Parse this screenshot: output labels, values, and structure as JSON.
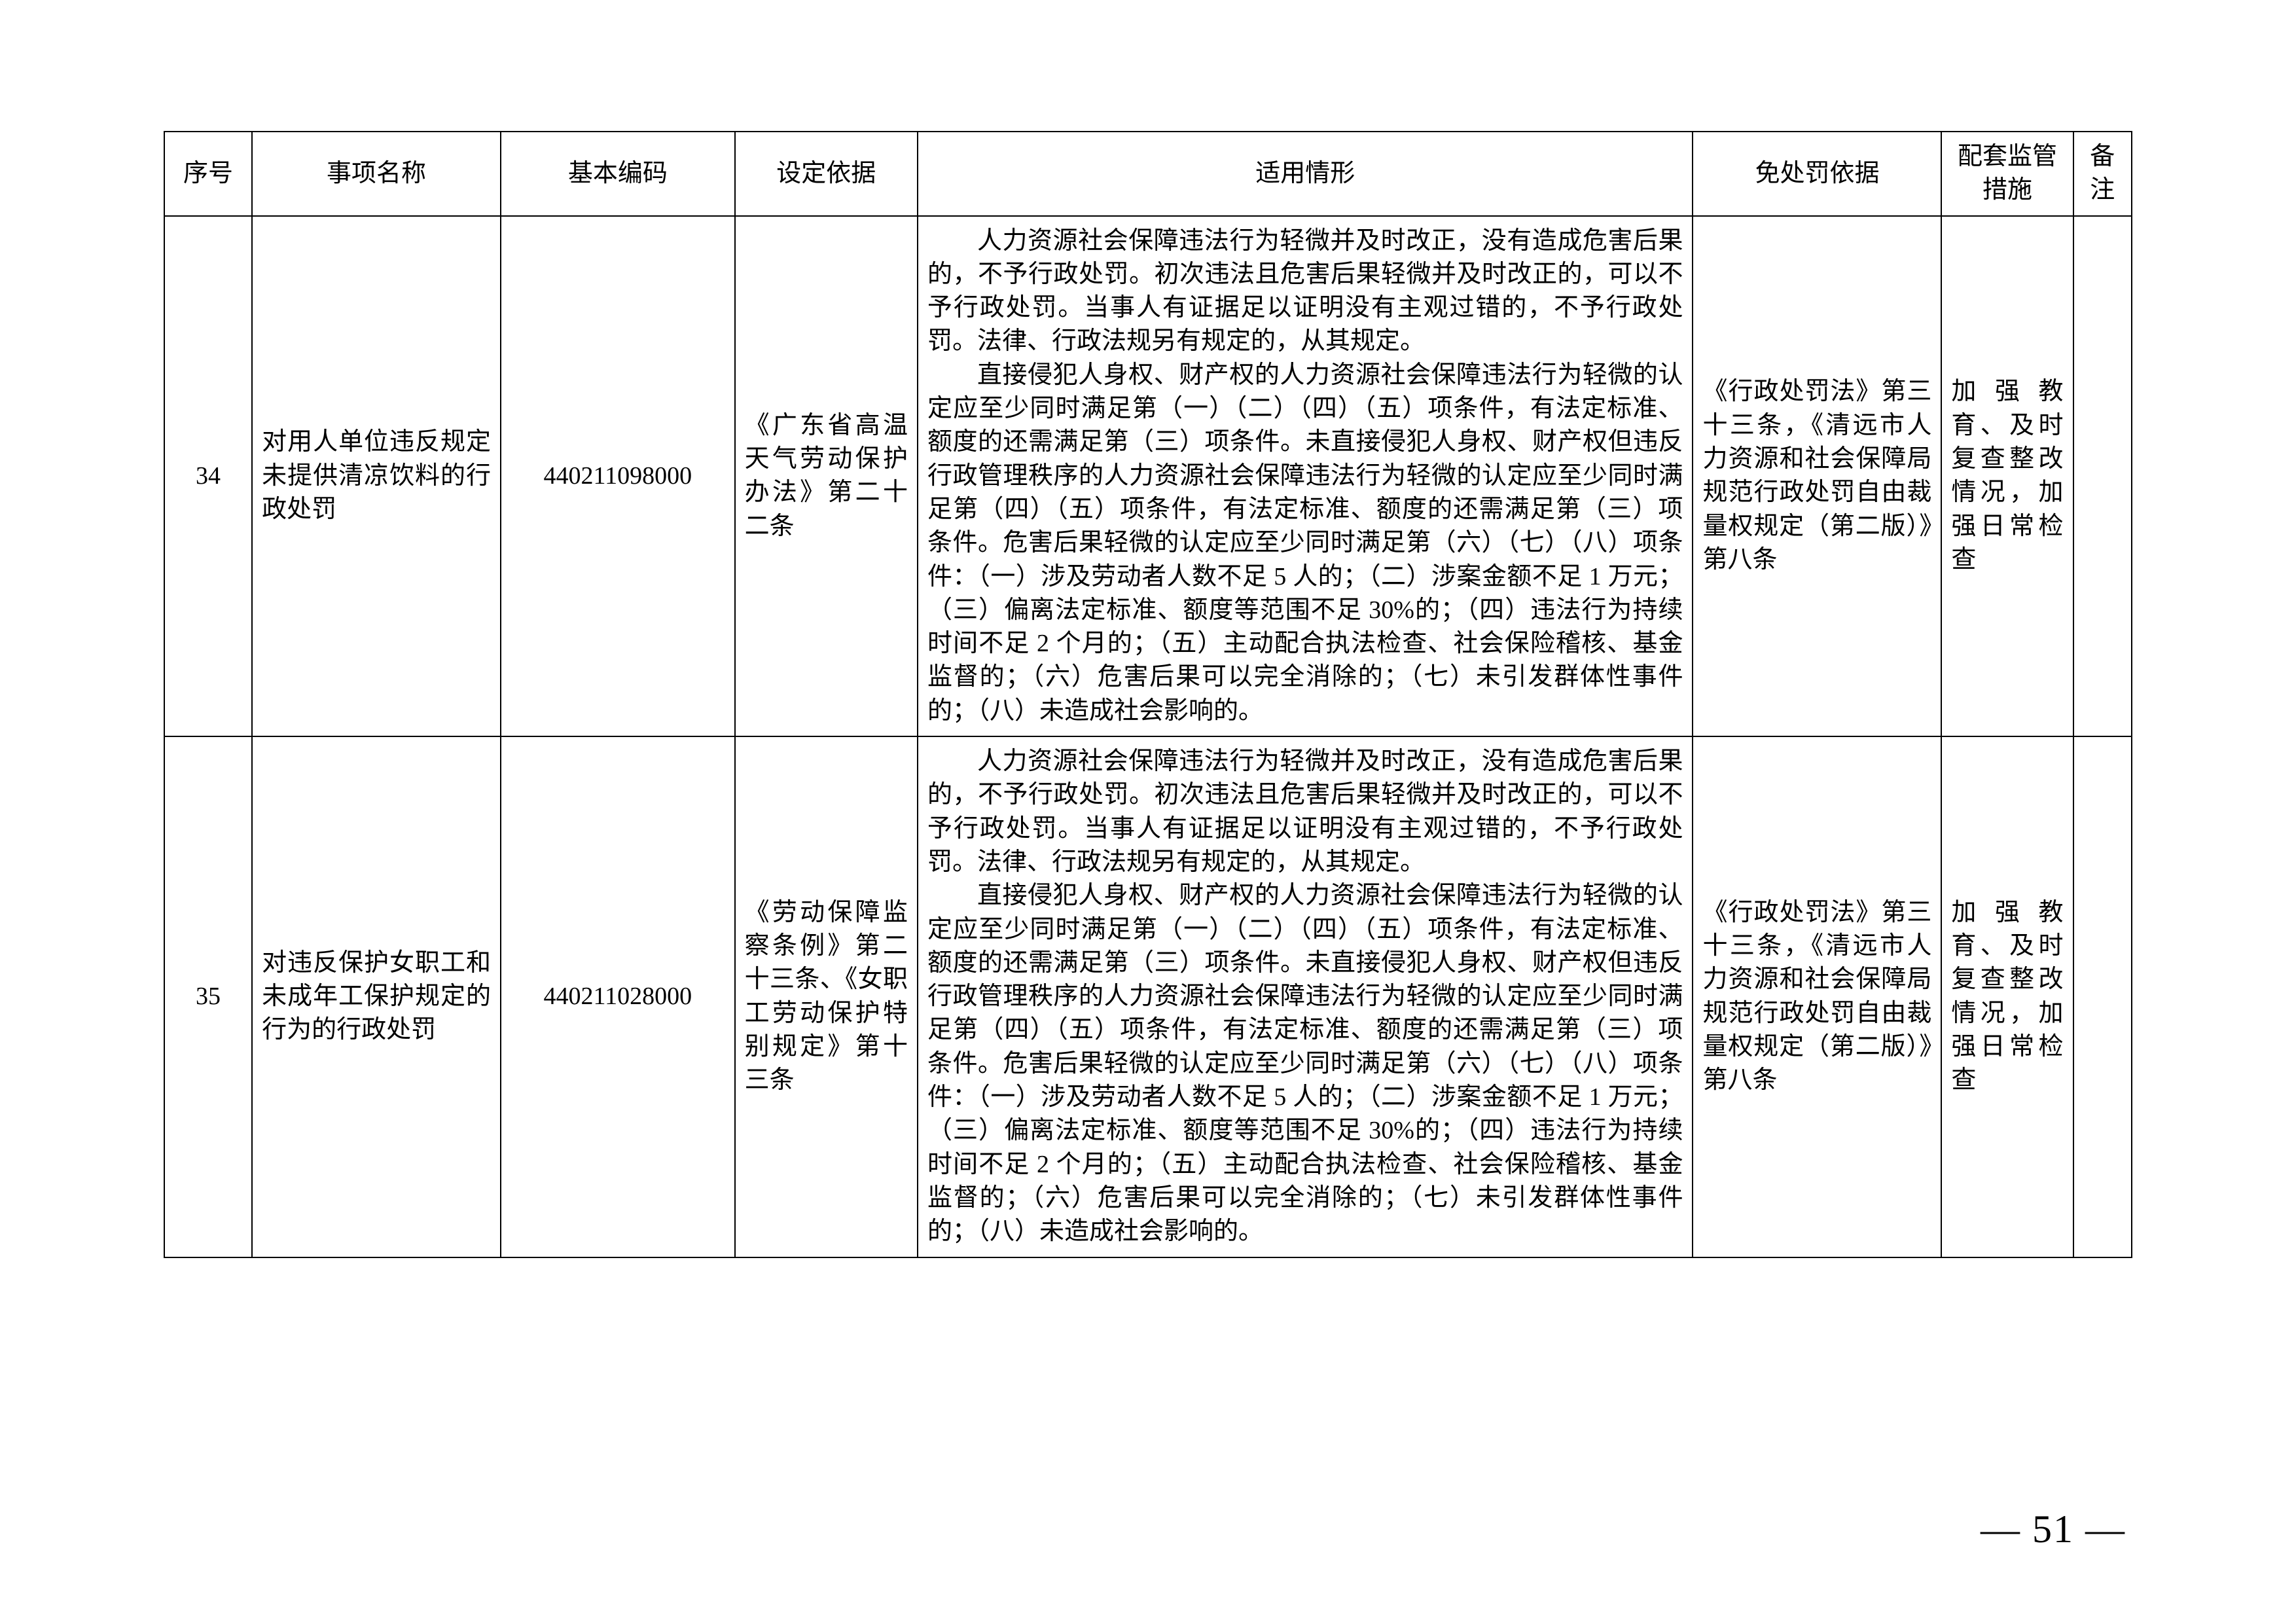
{
  "header": {
    "seq": "序号",
    "name": "事项名称",
    "code": "基本编码",
    "basis": "设定依据",
    "situation": "适用情形",
    "exemption": "免处罚依据",
    "measure": "配套监管措施",
    "note": "备注"
  },
  "rows": [
    {
      "seq": "34",
      "name": "对用人单位违反规定未提供清凉饮料的行政处罚",
      "code": "440211098000",
      "basis": "《广东省高温天气劳动保护办法》第二十二条",
      "situation_p1": "人力资源社会保障违法行为轻微并及时改正，没有造成危害后果的，不予行政处罚。初次违法且危害后果轻微并及时改正的，可以不予行政处罚。当事人有证据足以证明没有主观过错的，不予行政处罚。法律、行政法规另有规定的，从其规定。",
      "situation_p2": "直接侵犯人身权、财产权的人力资源社会保障违法行为轻微的认定应至少同时满足第（一）（二）（四）（五）项条件，有法定标准、额度的还需满足第（三）项条件。未直接侵犯人身权、财产权但违反行政管理秩序的人力资源社会保障违法行为轻微的认定应至少同时满足第（四）（五）项条件，有法定标准、额度的还需满足第（三）项条件。危害后果轻微的认定应至少同时满足第（六）（七）（八）项条件：（一）涉及劳动者人数不足 5 人的；（二）涉案金额不足 1 万元；（三）偏离法定标准、额度等范围不足 30%的；（四）违法行为持续时间不足 2 个月的；（五）主动配合执法检查、社会保险稽核、基金监督的；（六）危害后果可以完全消除的；（七）未引发群体性事件的；（八）未造成社会影响的。",
      "exemption": "《行政处罚法》第三十三条，《清远市人力资源和社会保障局规范行政处罚自由裁量权规定（第二版）》第八条",
      "measure": "加强教育、及时复查整改情况，加强日常检查",
      "note": ""
    },
    {
      "seq": "35",
      "name": "对违反保护女职工和未成年工保护规定的行为的行政处罚",
      "code": "440211028000",
      "basis": "《劳动保障监察条例》第二十三条、《女职工劳动保护特别规定》第十三条",
      "situation_p1": "人力资源社会保障违法行为轻微并及时改正，没有造成危害后果的，不予行政处罚。初次违法且危害后果轻微并及时改正的，可以不予行政处罚。当事人有证据足以证明没有主观过错的，不予行政处罚。法律、行政法规另有规定的，从其规定。",
      "situation_p2": "直接侵犯人身权、财产权的人力资源社会保障违法行为轻微的认定应至少同时满足第（一）（二）（四）（五）项条件，有法定标准、额度的还需满足第（三）项条件。未直接侵犯人身权、财产权但违反行政管理秩序的人力资源社会保障违法行为轻微的认定应至少同时满足第（四）（五）项条件，有法定标准、额度的还需满足第（三）项条件。危害后果轻微的认定应至少同时满足第（六）（七）（八）项条件：（一）涉及劳动者人数不足 5 人的；（二）涉案金额不足 1 万元；（三）偏离法定标准、额度等范围不足 30%的；（四）违法行为持续时间不足 2 个月的；（五）主动配合执法检查、社会保险稽核、基金监督的；（六）危害后果可以完全消除的；（七）未引发群体性事件的；（八）未造成社会影响的。",
      "exemption": "《行政处罚法》第三十三条，《清远市人力资源和社会保障局规范行政处罚自由裁量权规定（第二版）》第八条",
      "measure": "加强教育、及时复查整改情况，加强日常检查",
      "note": ""
    }
  ],
  "page_number": "— 51 —"
}
